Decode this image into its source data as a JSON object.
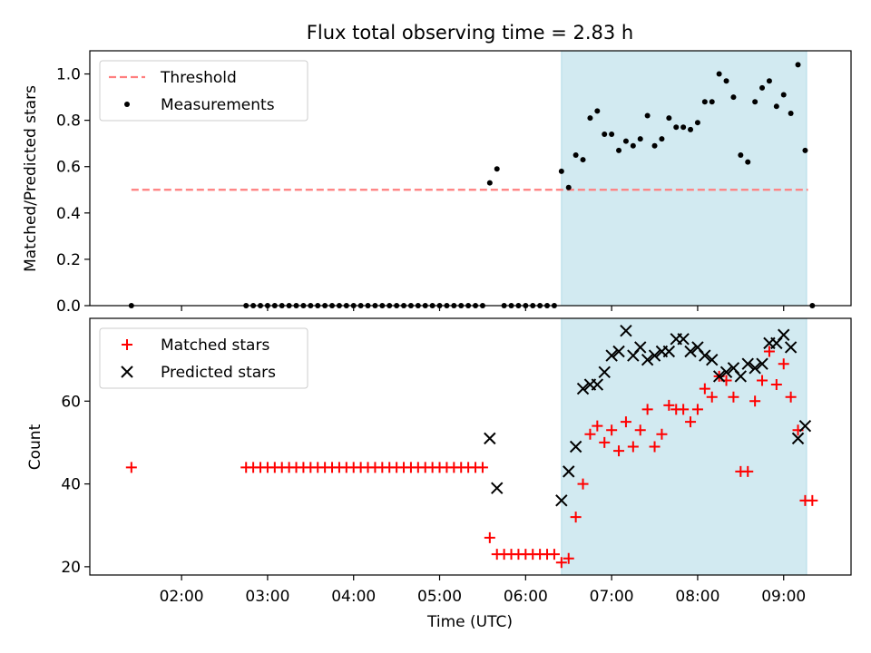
{
  "figure": {
    "title": "Flux total observing time = 2.83 h"
  },
  "chart_data": [
    {
      "type": "scatter",
      "panel": "top",
      "xlabel": "",
      "ylabel": "Matched/Predicted stars",
      "xlim": [
        "00:56",
        "09:47"
      ],
      "ylim": [
        0.0,
        1.1
      ],
      "yticks": [
        "0.0",
        "0.2",
        "0.4",
        "0.6",
        "0.8",
        "1.0"
      ],
      "grid": false,
      "legend": {
        "position": "top-left",
        "entries": [
          "Threshold",
          "Measurements"
        ]
      },
      "highlight_span": {
        "start": "06:25",
        "end": "09:16",
        "color": "#add8e6"
      },
      "threshold": {
        "name": "Threshold",
        "value": 0.5,
        "x_range": [
          "01:25",
          "09:17"
        ],
        "color": "#ff7f7f",
        "style": "dashed"
      },
      "series": [
        {
          "name": "Measurements",
          "color": "#000000",
          "marker": "dot",
          "points": [
            [
              "01:25",
              0.0
            ],
            [
              "02:45",
              0.0
            ],
            [
              "02:50",
              0.0
            ],
            [
              "02:55",
              0.0
            ],
            [
              "03:00",
              0.0
            ],
            [
              "03:05",
              0.0
            ],
            [
              "03:10",
              0.0
            ],
            [
              "03:15",
              0.0
            ],
            [
              "03:20",
              0.0
            ],
            [
              "03:25",
              0.0
            ],
            [
              "03:30",
              0.0
            ],
            [
              "03:35",
              0.0
            ],
            [
              "03:40",
              0.0
            ],
            [
              "03:45",
              0.0
            ],
            [
              "03:50",
              0.0
            ],
            [
              "03:55",
              0.0
            ],
            [
              "04:00",
              0.0
            ],
            [
              "04:05",
              0.0
            ],
            [
              "04:10",
              0.0
            ],
            [
              "04:15",
              0.0
            ],
            [
              "04:20",
              0.0
            ],
            [
              "04:25",
              0.0
            ],
            [
              "04:30",
              0.0
            ],
            [
              "04:35",
              0.0
            ],
            [
              "04:40",
              0.0
            ],
            [
              "04:45",
              0.0
            ],
            [
              "04:50",
              0.0
            ],
            [
              "04:55",
              0.0
            ],
            [
              "05:00",
              0.0
            ],
            [
              "05:05",
              0.0
            ],
            [
              "05:10",
              0.0
            ],
            [
              "05:15",
              0.0
            ],
            [
              "05:20",
              0.0
            ],
            [
              "05:25",
              0.0
            ],
            [
              "05:30",
              0.0
            ],
            [
              "05:35",
              0.53
            ],
            [
              "05:40",
              0.59
            ],
            [
              "05:45",
              0.0
            ],
            [
              "05:50",
              0.0
            ],
            [
              "05:55",
              0.0
            ],
            [
              "06:00",
              0.0
            ],
            [
              "06:05",
              0.0
            ],
            [
              "06:10",
              0.0
            ],
            [
              "06:15",
              0.0
            ],
            [
              "06:20",
              0.0
            ],
            [
              "06:25",
              0.58
            ],
            [
              "06:30",
              0.51
            ],
            [
              "06:35",
              0.65
            ],
            [
              "06:40",
              0.63
            ],
            [
              "06:45",
              0.81
            ],
            [
              "06:50",
              0.84
            ],
            [
              "06:55",
              0.74
            ],
            [
              "07:00",
              0.74
            ],
            [
              "07:05",
              0.67
            ],
            [
              "07:10",
              0.71
            ],
            [
              "07:15",
              0.69
            ],
            [
              "07:20",
              0.72
            ],
            [
              "07:25",
              0.82
            ],
            [
              "07:30",
              0.69
            ],
            [
              "07:35",
              0.72
            ],
            [
              "07:40",
              0.81
            ],
            [
              "07:45",
              0.77
            ],
            [
              "07:50",
              0.77
            ],
            [
              "07:55",
              0.76
            ],
            [
              "08:00",
              0.79
            ],
            [
              "08:05",
              0.88
            ],
            [
              "08:10",
              0.88
            ],
            [
              "08:15",
              1.0
            ],
            [
              "08:20",
              0.97
            ],
            [
              "08:25",
              0.9
            ],
            [
              "08:30",
              0.65
            ],
            [
              "08:35",
              0.62
            ],
            [
              "08:40",
              0.88
            ],
            [
              "08:45",
              0.94
            ],
            [
              "08:50",
              0.97
            ],
            [
              "08:55",
              0.86
            ],
            [
              "09:00",
              0.91
            ],
            [
              "09:05",
              0.83
            ],
            [
              "09:10",
              1.04
            ],
            [
              "09:15",
              0.67
            ],
            [
              "09:20",
              0.0
            ]
          ]
        }
      ]
    },
    {
      "type": "scatter",
      "panel": "bottom",
      "xlabel": "Time (UTC)",
      "ylabel": "Count",
      "xlim": [
        "00:56",
        "09:47"
      ],
      "ylim": [
        18,
        80
      ],
      "xticks": [
        "02:00",
        "03:00",
        "04:00",
        "05:00",
        "06:00",
        "07:00",
        "08:00",
        "09:00"
      ],
      "yticks": [
        "20",
        "40",
        "60"
      ],
      "grid": false,
      "legend": {
        "position": "top-left",
        "entries": [
          "Matched stars",
          "Predicted stars"
        ]
      },
      "highlight_span": {
        "start": "06:25",
        "end": "09:16",
        "color": "#add8e6"
      },
      "series": [
        {
          "name": "Matched stars",
          "color": "#ff0000",
          "marker": "plus",
          "points": [
            [
              "01:25",
              44
            ],
            [
              "02:45",
              44
            ],
            [
              "02:50",
              44
            ],
            [
              "02:55",
              44
            ],
            [
              "03:00",
              44
            ],
            [
              "03:05",
              44
            ],
            [
              "03:10",
              44
            ],
            [
              "03:15",
              44
            ],
            [
              "03:20",
              44
            ],
            [
              "03:25",
              44
            ],
            [
              "03:30",
              44
            ],
            [
              "03:35",
              44
            ],
            [
              "03:40",
              44
            ],
            [
              "03:45",
              44
            ],
            [
              "03:50",
              44
            ],
            [
              "03:55",
              44
            ],
            [
              "04:00",
              44
            ],
            [
              "04:05",
              44
            ],
            [
              "04:10",
              44
            ],
            [
              "04:15",
              44
            ],
            [
              "04:20",
              44
            ],
            [
              "04:25",
              44
            ],
            [
              "04:30",
              44
            ],
            [
              "04:35",
              44
            ],
            [
              "04:40",
              44
            ],
            [
              "04:45",
              44
            ],
            [
              "04:50",
              44
            ],
            [
              "04:55",
              44
            ],
            [
              "05:00",
              44
            ],
            [
              "05:05",
              44
            ],
            [
              "05:10",
              44
            ],
            [
              "05:15",
              44
            ],
            [
              "05:20",
              44
            ],
            [
              "05:25",
              44
            ],
            [
              "05:30",
              44
            ],
            [
              "05:35",
              27
            ],
            [
              "05:40",
              23
            ],
            [
              "05:45",
              23
            ],
            [
              "05:50",
              23
            ],
            [
              "05:55",
              23
            ],
            [
              "06:00",
              23
            ],
            [
              "06:05",
              23
            ],
            [
              "06:10",
              23
            ],
            [
              "06:15",
              23
            ],
            [
              "06:20",
              23
            ],
            [
              "06:25",
              21
            ],
            [
              "06:30",
              22
            ],
            [
              "06:35",
              32
            ],
            [
              "06:40",
              40
            ],
            [
              "06:45",
              52
            ],
            [
              "06:50",
              54
            ],
            [
              "06:55",
              50
            ],
            [
              "07:00",
              53
            ],
            [
              "07:05",
              48
            ],
            [
              "07:10",
              55
            ],
            [
              "07:15",
              49
            ],
            [
              "07:20",
              53
            ],
            [
              "07:25",
              58
            ],
            [
              "07:30",
              49
            ],
            [
              "07:35",
              52
            ],
            [
              "07:40",
              59
            ],
            [
              "07:45",
              58
            ],
            [
              "07:50",
              58
            ],
            [
              "07:55",
              55
            ],
            [
              "08:00",
              58
            ],
            [
              "08:05",
              63
            ],
            [
              "08:10",
              61
            ],
            [
              "08:15",
              66
            ],
            [
              "08:20",
              65
            ],
            [
              "08:25",
              61
            ],
            [
              "08:30",
              43
            ],
            [
              "08:35",
              43
            ],
            [
              "08:40",
              60
            ],
            [
              "08:45",
              65
            ],
            [
              "08:50",
              72
            ],
            [
              "08:55",
              64
            ],
            [
              "09:00",
              69
            ],
            [
              "09:05",
              61
            ],
            [
              "09:10",
              53
            ],
            [
              "09:15",
              36
            ],
            [
              "09:20",
              36
            ]
          ]
        },
        {
          "name": "Predicted stars",
          "color": "#000000",
          "marker": "x",
          "points": [
            [
              "05:35",
              51
            ],
            [
              "05:40",
              39
            ],
            [
              "06:25",
              36
            ],
            [
              "06:30",
              43
            ],
            [
              "06:35",
              49
            ],
            [
              "06:40",
              63
            ],
            [
              "06:45",
              64
            ],
            [
              "06:50",
              64
            ],
            [
              "06:55",
              67
            ],
            [
              "07:00",
              71
            ],
            [
              "07:05",
              72
            ],
            [
              "07:10",
              77
            ],
            [
              "07:15",
              71
            ],
            [
              "07:20",
              73
            ],
            [
              "07:25",
              70
            ],
            [
              "07:30",
              71
            ],
            [
              "07:35",
              72
            ],
            [
              "07:40",
              72
            ],
            [
              "07:45",
              75
            ],
            [
              "07:50",
              75
            ],
            [
              "07:55",
              72
            ],
            [
              "08:00",
              73
            ],
            [
              "08:05",
              71
            ],
            [
              "08:10",
              70
            ],
            [
              "08:15",
              66
            ],
            [
              "08:20",
              67
            ],
            [
              "08:25",
              68
            ],
            [
              "08:30",
              66
            ],
            [
              "08:35",
              69
            ],
            [
              "08:40",
              68
            ],
            [
              "08:45",
              69
            ],
            [
              "08:50",
              74
            ],
            [
              "08:55",
              74
            ],
            [
              "09:00",
              76
            ],
            [
              "09:05",
              73
            ],
            [
              "09:10",
              51
            ],
            [
              "09:15",
              54
            ]
          ]
        }
      ]
    }
  ]
}
